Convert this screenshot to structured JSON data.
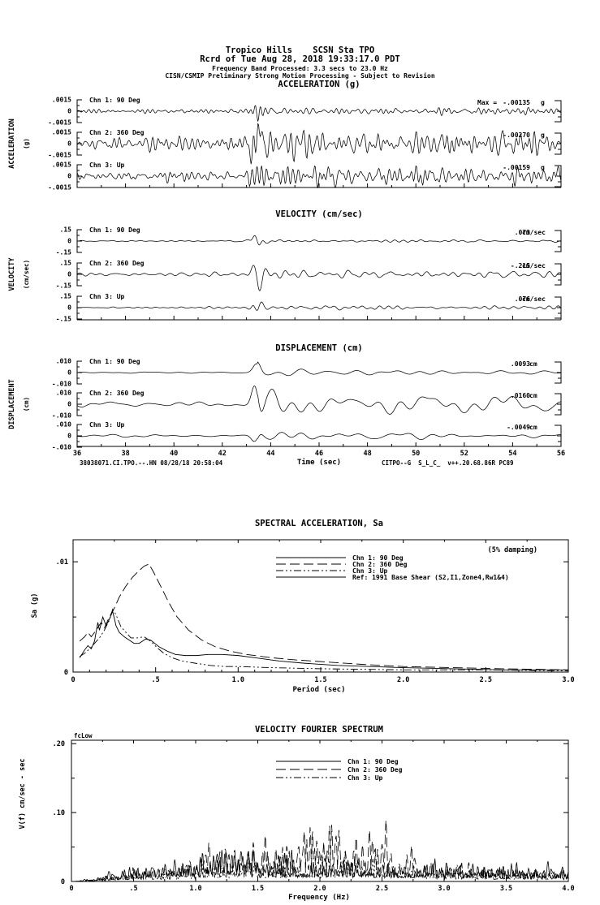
{
  "page": {
    "background": "#ffffff",
    "ink": "#000000"
  },
  "header": {
    "line1": "Tropico Hills    SCSN Sta TPO",
    "line2": "Rcrd of Tue Aug 28, 2018 19:33:17.0 PDT",
    "line3": "Frequency Band Processed: 3.3 secs to 23.0 Hz",
    "line4": "CISN/CSMIP Preliminary Strong Motion Processing - Subject to Revision"
  },
  "footer": {
    "left": "38038071.CI.TPO.--.HN 08/28/18 20:58:04",
    "right": "CITPO--G  S_L_C_  v++.20.68.86R PC89"
  },
  "chart_data": [
    {
      "id": "acceleration",
      "type": "line",
      "title": "ACCELERATION (g)",
      "ylabel": "ACCELERATION",
      "ylabel_units": "(g)",
      "x_range_sec": [
        36,
        56
      ],
      "channels": [
        {
          "label": "Chn 1: 90 Deg",
          "axis_ticks": [
            ".0015",
            "0",
            "-.0015"
          ],
          "full_scale": 0.0015,
          "max_prefix": "Max =",
          "max_value": "-.00135",
          "unit": "g",
          "peak": -0.00135,
          "seed": 3,
          "cycles": 110,
          "pre_noise": 0.17,
          "coda": 0.2
        },
        {
          "label": "Chn 2: 360 Deg",
          "axis_ticks": [
            ".0015",
            "0",
            "-.0015"
          ],
          "full_scale": 0.0015,
          "max_value": "-.00270",
          "unit": "g",
          "peak": -0.0027,
          "seed": 7,
          "cycles": 115,
          "pre_noise": 0.2,
          "coda": 0.22
        },
        {
          "label": "Chn 3: Up",
          "axis_ticks": [
            ".0015",
            "0",
            "-.0015"
          ],
          "full_scale": 0.0015,
          "max_value": "-.00159",
          "unit": "g",
          "peak": -0.00159,
          "seed": 12,
          "cycles": 120,
          "pre_noise": 0.15,
          "coda": 0.18
        }
      ]
    },
    {
      "id": "velocity",
      "type": "line",
      "title": "VELOCITY (cm/sec)",
      "ylabel": "VELOCITY",
      "ylabel_units": "(cm/sec)",
      "x_range_sec": [
        36,
        56
      ],
      "channels": [
        {
          "label": "Chn 1: 90 Deg",
          "axis_ticks": [
            ".15",
            "0",
            "-.15"
          ],
          "full_scale": 0.15,
          "max_value": ".073",
          "unit": "cm/sec",
          "peak": 0.073,
          "seed": 21,
          "cycles": 60,
          "pre_noise": 0.1,
          "coda": 0.16
        },
        {
          "label": "Chn 2: 360 Deg",
          "axis_ticks": [
            ".15",
            "0",
            "-.15"
          ],
          "full_scale": 0.15,
          "max_value": "-.215",
          "unit": "cm/sec",
          "peak": -0.215,
          "seed": 25,
          "cycles": 58,
          "pre_noise": 0.09,
          "coda": 0.15
        },
        {
          "label": "Chn 3: Up",
          "axis_ticks": [
            ".15",
            "0",
            "-.15"
          ],
          "full_scale": 0.15,
          "max_value": ".076",
          "unit": "cm/sec",
          "peak": 0.076,
          "seed": 31,
          "cycles": 62,
          "pre_noise": 0.09,
          "coda": 0.13
        }
      ]
    },
    {
      "id": "displacement",
      "type": "line",
      "title": "DISPLACEMENT (cm)",
      "ylabel": "DISPLACEMENT",
      "ylabel_units": "(cm)",
      "x_range_sec": [
        36,
        56
      ],
      "xlabel": "Time (sec)",
      "x_tick_labels": [
        "36",
        "38",
        "40",
        "42",
        "44",
        "46",
        "48",
        "50",
        "52",
        "54",
        "56"
      ],
      "channels": [
        {
          "label": "Chn 1: 90 Deg",
          "axis_ticks": [
            ".010",
            "0",
            "-.010"
          ],
          "full_scale": 0.01,
          "max_value": ".0093",
          "unit": "cm",
          "peak": 0.0093,
          "seed": 41,
          "cycles": 26,
          "pre_noise": 0.1,
          "coda": 0.3
        },
        {
          "label": "Chn 2: 360 Deg",
          "axis_ticks": [
            ".010",
            "0",
            "-.010"
          ],
          "full_scale": 0.01,
          "max_value": ".0160",
          "unit": "cm",
          "peak": 0.016,
          "seed": 45,
          "cycles": 27,
          "pre_noise": 0.08,
          "coda": 0.32
        },
        {
          "label": "Chn 3: Up",
          "axis_ticks": [
            ".010",
            "0",
            "-.010"
          ],
          "full_scale": 0.01,
          "max_value": "-.0049",
          "unit": "cm",
          "peak": -0.0049,
          "seed": 52,
          "cycles": 28,
          "pre_noise": 0.09,
          "coda": 0.28
        }
      ]
    },
    {
      "id": "spectral_acceleration",
      "type": "line",
      "title": "SPECTRAL ACCELERATION, Sa",
      "annotation": "(5% damping)",
      "xlabel": "Period (sec)",
      "ylabel": "Sa (g)",
      "xlim": [
        0,
        3.0
      ],
      "ylim": [
        0,
        0.012
      ],
      "x_tick_labels": [
        "0",
        ".5",
        "1.0",
        "1.5",
        "2.0",
        "2.5",
        "3.0"
      ],
      "y_tick_labels": [
        "0",
        ".01"
      ],
      "y_tick_values": [
        0,
        0.01
      ],
      "legend_position": "top-center",
      "series": [
        {
          "name": "Chn 1: 90 Deg",
          "dash": "solid",
          "points": [
            [
              0.04,
              0.0013
            ],
            [
              0.07,
              0.002
            ],
            [
              0.09,
              0.0024
            ],
            [
              0.11,
              0.0021
            ],
            [
              0.13,
              0.0028
            ],
            [
              0.15,
              0.0045
            ],
            [
              0.16,
              0.0038
            ],
            [
              0.18,
              0.005
            ],
            [
              0.2,
              0.0042
            ],
            [
              0.22,
              0.0048
            ],
            [
              0.24,
              0.0055
            ],
            [
              0.26,
              0.0042
            ],
            [
              0.28,
              0.0036
            ],
            [
              0.31,
              0.0032
            ],
            [
              0.34,
              0.0029
            ],
            [
              0.37,
              0.0026
            ],
            [
              0.4,
              0.0026
            ],
            [
              0.44,
              0.003
            ],
            [
              0.47,
              0.0029
            ],
            [
              0.52,
              0.0023
            ],
            [
              0.57,
              0.0019
            ],
            [
              0.62,
              0.0016
            ],
            [
              0.68,
              0.0015
            ],
            [
              0.75,
              0.0015
            ],
            [
              0.82,
              0.0016
            ],
            [
              0.9,
              0.0016
            ],
            [
              1.0,
              0.0015
            ],
            [
              1.1,
              0.0013
            ],
            [
              1.25,
              0.001
            ],
            [
              1.4,
              0.0008
            ],
            [
              1.6,
              0.0006
            ],
            [
              1.8,
              0.0005
            ],
            [
              2.0,
              0.0004
            ],
            [
              2.3,
              0.0003
            ],
            [
              2.6,
              0.0002
            ],
            [
              3.0,
              0.0002
            ]
          ]
        },
        {
          "name": "Chn 2: 360 Deg",
          "dash": "long",
          "points": [
            [
              0.04,
              0.0028
            ],
            [
              0.07,
              0.0032
            ],
            [
              0.09,
              0.0036
            ],
            [
              0.11,
              0.0032
            ],
            [
              0.14,
              0.0038
            ],
            [
              0.17,
              0.0045
            ],
            [
              0.19,
              0.004
            ],
            [
              0.22,
              0.005
            ],
            [
              0.25,
              0.0058
            ],
            [
              0.28,
              0.0068
            ],
            [
              0.32,
              0.0078
            ],
            [
              0.36,
              0.0086
            ],
            [
              0.4,
              0.0092
            ],
            [
              0.43,
              0.0096
            ],
            [
              0.46,
              0.0098
            ],
            [
              0.49,
              0.009
            ],
            [
              0.53,
              0.0078
            ],
            [
              0.58,
              0.0063
            ],
            [
              0.63,
              0.005
            ],
            [
              0.7,
              0.0038
            ],
            [
              0.78,
              0.0029
            ],
            [
              0.86,
              0.0023
            ],
            [
              0.95,
              0.0019
            ],
            [
              1.05,
              0.0016
            ],
            [
              1.2,
              0.0013
            ],
            [
              1.35,
              0.0011
            ],
            [
              1.55,
              0.0009
            ],
            [
              1.75,
              0.0007
            ],
            [
              2.0,
              0.0005
            ],
            [
              2.3,
              0.0004
            ],
            [
              2.6,
              0.0003
            ],
            [
              3.0,
              0.0002
            ]
          ]
        },
        {
          "name": "Chn 3: Up",
          "dash": "dashdotdot",
          "points": [
            [
              0.04,
              0.0014
            ],
            [
              0.07,
              0.0017
            ],
            [
              0.1,
              0.0021
            ],
            [
              0.13,
              0.0026
            ],
            [
              0.16,
              0.0031
            ],
            [
              0.19,
              0.0038
            ],
            [
              0.22,
              0.0047
            ],
            [
              0.24,
              0.0057
            ],
            [
              0.26,
              0.0052
            ],
            [
              0.29,
              0.0041
            ],
            [
              0.32,
              0.0036
            ],
            [
              0.35,
              0.0031
            ],
            [
              0.39,
              0.0031
            ],
            [
              0.43,
              0.0032
            ],
            [
              0.47,
              0.0028
            ],
            [
              0.51,
              0.0022
            ],
            [
              0.55,
              0.0017
            ],
            [
              0.6,
              0.0013
            ],
            [
              0.66,
              0.001
            ],
            [
              0.74,
              0.0008
            ],
            [
              0.83,
              0.0006
            ],
            [
              0.92,
              0.0005
            ],
            [
              1.0,
              0.0005
            ],
            [
              1.2,
              0.0004
            ],
            [
              1.5,
              0.0003
            ],
            [
              2.0,
              0.0002
            ],
            [
              2.5,
              0.0002
            ],
            [
              3.0,
              0.0001
            ]
          ]
        },
        {
          "name": "Ref: 1991 Base Shear (S2,I1,Zone4,Rw1&4)",
          "dash": "solid",
          "offscale": true,
          "points": [
            [
              0.04,
              1.1
            ],
            [
              3.0,
              1.1
            ]
          ]
        }
      ]
    },
    {
      "id": "velocity_fourier_spectrum",
      "type": "line",
      "title": "VELOCITY FOURIER SPECTRUM",
      "marker_label": "fcLow",
      "xlabel": "Frequency (Hz)",
      "ylabel": "V(f)   cm/sec - sec",
      "xlim": [
        0,
        4.0
      ],
      "ylim": [
        0,
        0.205
      ],
      "x_tick_labels": [
        "0",
        ".5",
        "1.0",
        "1.5",
        "2.0",
        "2.5",
        "3.0",
        "3.5",
        "4.0"
      ],
      "y_tick_labels": [
        "0",
        ".10",
        ".20"
      ],
      "y_tick_values": [
        0,
        0.1,
        0.2
      ],
      "legend_position": "top-center",
      "series": [
        {
          "name": "Chn 1: 90 Deg",
          "dash": "solid",
          "seed": 61,
          "cycles": 170,
          "envelope": [
            [
              0,
              0
            ],
            [
              0.2,
              0.012
            ],
            [
              0.5,
              0.035
            ],
            [
              0.8,
              0.05
            ],
            [
              1.0,
              0.06
            ],
            [
              1.25,
              0.085
            ],
            [
              1.5,
              0.055
            ],
            [
              1.8,
              0.045
            ],
            [
              2.1,
              0.05
            ],
            [
              2.4,
              0.045
            ],
            [
              2.7,
              0.04
            ],
            [
              3.0,
              0.05
            ],
            [
              3.3,
              0.04
            ],
            [
              3.6,
              0.04
            ],
            [
              4.0,
              0.038
            ]
          ]
        },
        {
          "name": "Chn 2: 360 Deg",
          "dash": "long",
          "seed": 67,
          "cycles": 150,
          "envelope": [
            [
              0,
              0
            ],
            [
              0.25,
              0.01
            ],
            [
              0.5,
              0.03
            ],
            [
              0.8,
              0.045
            ],
            [
              1.1,
              0.06
            ],
            [
              1.35,
              0.075
            ],
            [
              1.6,
              0.095
            ],
            [
              1.8,
              0.105
            ],
            [
              2.05,
              0.115
            ],
            [
              2.25,
              0.11
            ],
            [
              2.45,
              0.095
            ],
            [
              2.65,
              0.08
            ],
            [
              2.85,
              0.045
            ],
            [
              3.1,
              0.03
            ],
            [
              3.5,
              0.028
            ],
            [
              4.0,
              0.022
            ]
          ]
        },
        {
          "name": "Chn 3: Up",
          "dash": "dashdotdot",
          "seed": 72,
          "cycles": 160,
          "envelope": [
            [
              0,
              0
            ],
            [
              0.3,
              0.01
            ],
            [
              0.6,
              0.022
            ],
            [
              1.0,
              0.032
            ],
            [
              1.35,
              0.05
            ],
            [
              1.7,
              0.035
            ],
            [
              2.0,
              0.04
            ],
            [
              2.25,
              0.06
            ],
            [
              2.5,
              0.04
            ],
            [
              2.8,
              0.03
            ],
            [
              3.2,
              0.028
            ],
            [
              3.6,
              0.022
            ],
            [
              4.0,
              0.02
            ]
          ]
        }
      ]
    }
  ]
}
